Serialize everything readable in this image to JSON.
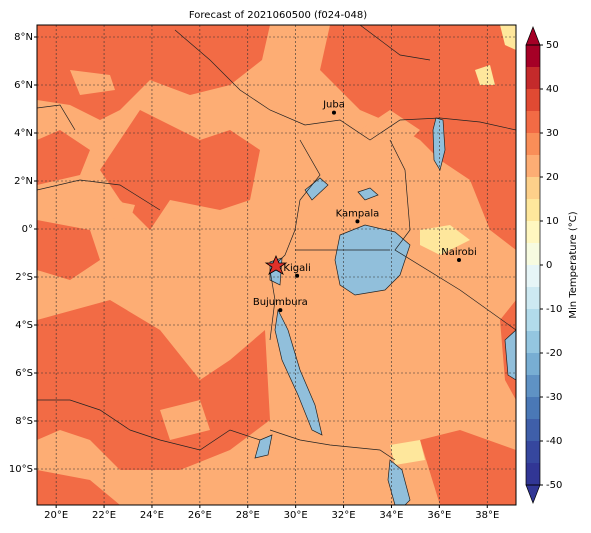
{
  "title": "Forecast of 2021060500 (f024-048)",
  "lonlim": [
    19.2,
    39.2
  ],
  "latlim": [
    -11.5,
    8.5
  ],
  "lon_ticks": [
    {
      "value": 20,
      "label": "20°E"
    },
    {
      "value": 22,
      "label": "22°E"
    },
    {
      "value": 24,
      "label": "24°E"
    },
    {
      "value": 26,
      "label": "26°E"
    },
    {
      "value": 28,
      "label": "28°E"
    },
    {
      "value": 30,
      "label": "30°E"
    },
    {
      "value": 32,
      "label": "32°E"
    },
    {
      "value": 34,
      "label": "34°E"
    },
    {
      "value": 36,
      "label": "36°E"
    },
    {
      "value": 38,
      "label": "38°E"
    }
  ],
  "lat_ticks": [
    {
      "value": 8,
      "label": "8°N"
    },
    {
      "value": 6,
      "label": "6°N"
    },
    {
      "value": 4,
      "label": "4°N"
    },
    {
      "value": 2,
      "label": "2°N"
    },
    {
      "value": 0,
      "label": "0°"
    },
    {
      "value": -2,
      "label": "2°S"
    },
    {
      "value": -4,
      "label": "4°S"
    },
    {
      "value": -6,
      "label": "6°S"
    },
    {
      "value": -8,
      "label": "8°S"
    },
    {
      "value": -10,
      "label": "10°S"
    }
  ],
  "cities": [
    {
      "name": "Juba",
      "lon": 31.6,
      "lat": 4.85
    },
    {
      "name": "Kampala",
      "lon": 32.58,
      "lat": 0.32
    },
    {
      "name": "Nairobi",
      "lon": 36.82,
      "lat": -1.29
    },
    {
      "name": "Kigali",
      "lon": 30.06,
      "lat": -1.95
    },
    {
      "name": "Bujumbura",
      "lon": 29.36,
      "lat": -3.38
    }
  ],
  "colorbar": {
    "label": "Min Temperature (°C)",
    "levels": [
      -50,
      -45,
      -40,
      -35,
      -30,
      -25,
      -20,
      -15,
      -10,
      -5,
      0,
      5,
      10,
      15,
      20,
      25,
      30,
      35,
      40,
      45,
      50
    ],
    "colors": [
      "#313695",
      "#36479e",
      "#3f5fa9",
      "#4a78b6",
      "#5f92c4",
      "#78aed3",
      "#94c6e0",
      "#b2dbeb",
      "#cde9f2",
      "#e6f5f7",
      "#f7fbe0",
      "#fff7c0",
      "#fee79c",
      "#fdd08a",
      "#fdad74",
      "#f98e58",
      "#f26b45",
      "#e04a33",
      "#c42a2b",
      "#a50026"
    ],
    "ticks": [
      -50,
      -40,
      -30,
      -20,
      -10,
      0,
      10,
      20,
      30,
      40,
      50
    ]
  }
}
